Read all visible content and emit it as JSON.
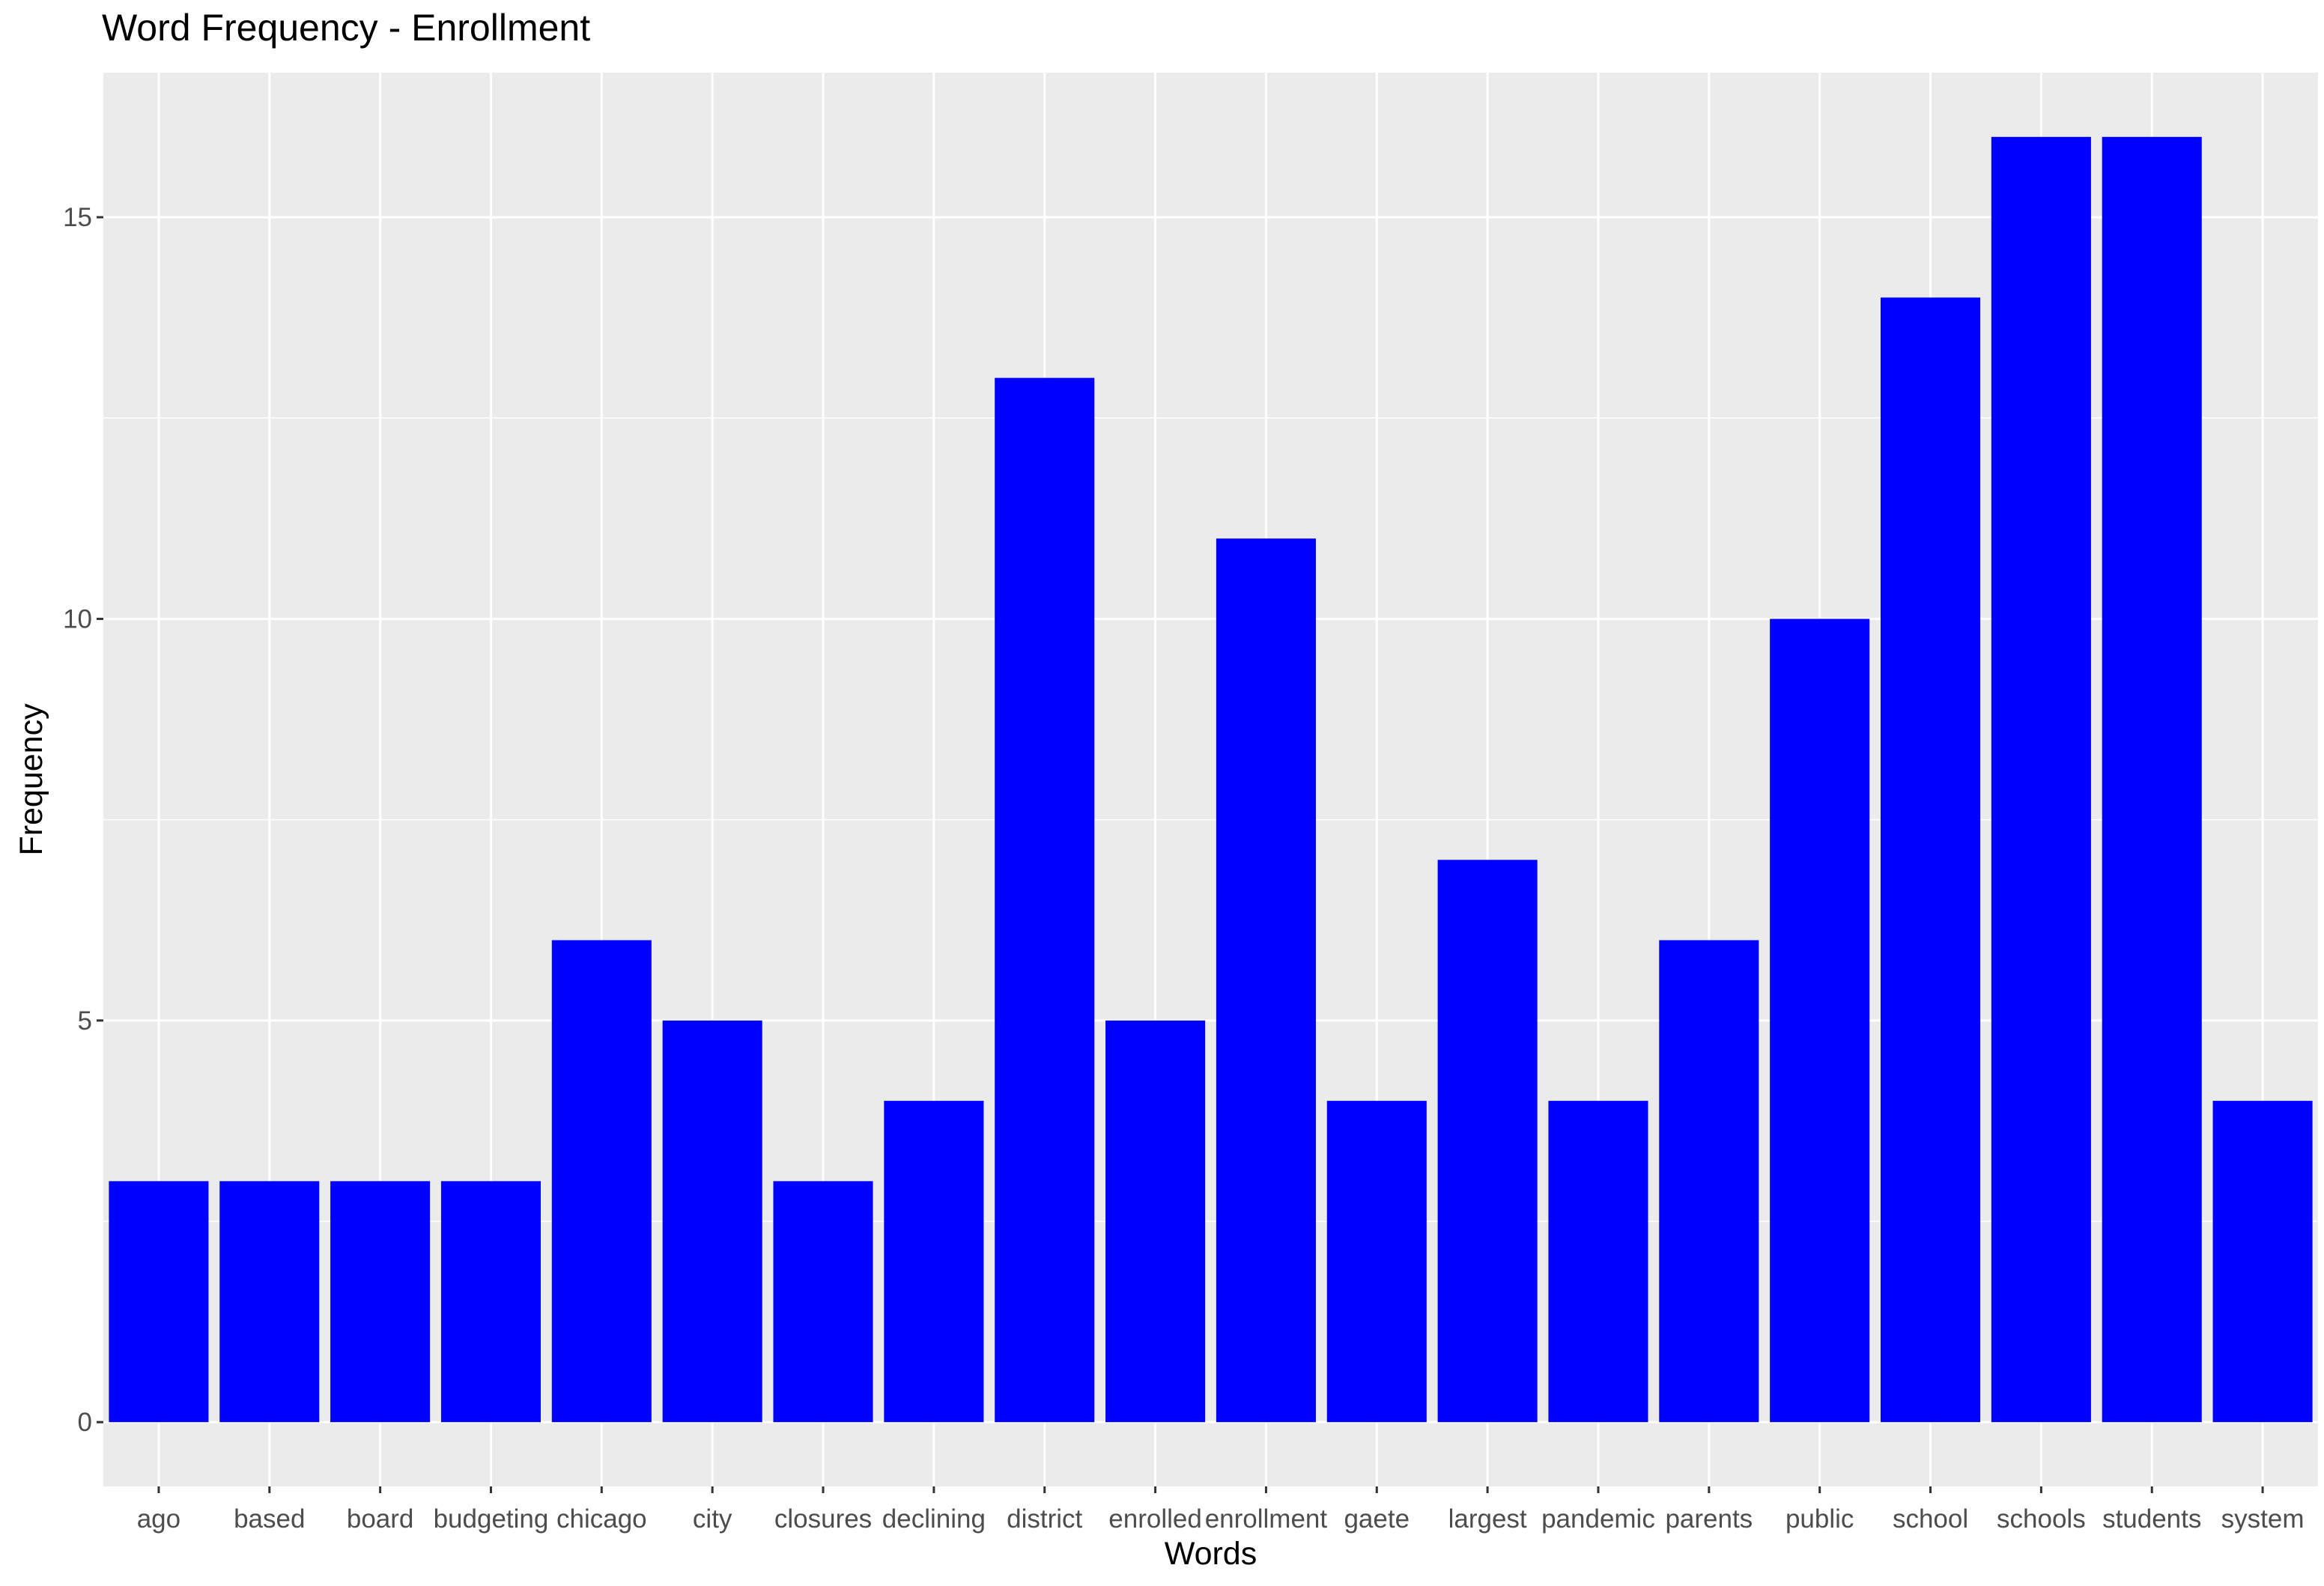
{
  "chart_data": {
    "type": "bar",
    "title": "Word Frequency - Enrollment",
    "xlabel": "Words",
    "ylabel": "Frequency",
    "categories": [
      "ago",
      "based",
      "board",
      "budgeting",
      "chicago",
      "city",
      "closures",
      "declining",
      "district",
      "enrolled",
      "enrollment",
      "gaete",
      "largest",
      "pandemic",
      "parents",
      "public",
      "school",
      "schools",
      "students",
      "system"
    ],
    "values": [
      3,
      3,
      3,
      3,
      6,
      5,
      3,
      4,
      13,
      5,
      11,
      4,
      7,
      4,
      6,
      10,
      14,
      16,
      16,
      4
    ],
    "yticks": [
      0,
      5,
      10,
      15
    ],
    "ylim": [
      -0.8,
      16.8
    ],
    "grid": true,
    "bar_color": "#0000ff",
    "panel_color": "#ebebeb",
    "grid_color": "#ffffff"
  }
}
